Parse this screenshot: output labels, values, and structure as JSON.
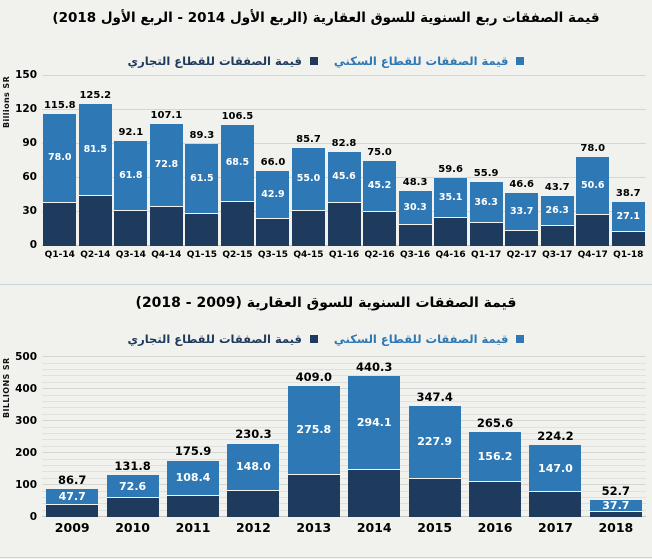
{
  "colors": {
    "residential": "#2e79b5",
    "commercial": "#1e3a5c"
  },
  "chart_data": [
    {
      "type": "bar",
      "stacked": true,
      "title": "قيمة الصفقات ربع السنوية للسوق العقارية (الربع الأول 2014 - الربع الأول 2018)",
      "y_axis_label": "Billions SR",
      "ylim": [
        0,
        150
      ],
      "y_ticks": [
        0,
        30,
        60,
        90,
        120,
        150
      ],
      "grid_step": 30,
      "major_every": 30,
      "legend_position": "top",
      "legend": [
        {
          "label": "قيمة الصفقات للقطاع السكني",
          "series": "residential"
        },
        {
          "label": "قيمة الصفقات للقطاع التجاري",
          "series": "commercial"
        }
      ],
      "categories": [
        "Q1-14",
        "Q2-14",
        "Q3-14",
        "Q4-14",
        "Q1-15",
        "Q2-15",
        "Q3-15",
        "Q4-15",
        "Q1-16",
        "Q2-16",
        "Q3-16",
        "Q4-16",
        "Q1-17",
        "Q2-17",
        "Q3-17",
        "Q4-17",
        "Q1-18"
      ],
      "series": [
        {
          "name": "قيمة الصفقات للقطاع التجاري",
          "color": "#1e3a5c",
          "labeled": false,
          "values": [
            37.8,
            43.7,
            30.3,
            34.3,
            27.8,
            38.0,
            23.1,
            30.7,
            37.2,
            29.8,
            18.0,
            24.5,
            19.6,
            12.9,
            17.4,
            27.4,
            11.6
          ]
        },
        {
          "name": "قيمة الصفقات للقطاع السكني",
          "color": "#2e79b5",
          "labeled": true,
          "values": [
            78.0,
            81.5,
            61.8,
            72.8,
            61.5,
            68.5,
            42.9,
            55.0,
            45.6,
            45.2,
            30.3,
            35.1,
            36.3,
            33.7,
            26.3,
            50.6,
            27.1
          ]
        }
      ],
      "totals": [
        115.8,
        125.2,
        92.1,
        107.1,
        89.3,
        106.5,
        66.0,
        85.7,
        82.8,
        75.0,
        48.3,
        59.6,
        55.9,
        46.6,
        43.7,
        78.0,
        38.7
      ]
    },
    {
      "type": "bar",
      "stacked": true,
      "title": "قيمة الصفقات السنوية للسوق العقارية (2009 - 2018)",
      "y_axis_label": "BILLIONS SR",
      "ylim": [
        0,
        500
      ],
      "y_ticks": [
        0,
        100,
        200,
        300,
        400,
        500
      ],
      "grid_step": 20,
      "major_every": 100,
      "legend_position": "top",
      "legend": [
        {
          "label": "قيمة الصفقات للقطاع السكني",
          "series": "residential"
        },
        {
          "label": "قيمة الصفقات للقطاع التجاري",
          "series": "commercial"
        }
      ],
      "categories": [
        "2009",
        "2010",
        "2011",
        "2012",
        "2013",
        "2014",
        "2015",
        "2016",
        "2017",
        "2018"
      ],
      "series": [
        {
          "name": "قيمة الصفقات للقطاع التجاري",
          "color": "#1e3a5c",
          "labeled": false,
          "values": [
            39.0,
            59.2,
            67.5,
            82.3,
            133.2,
            146.2,
            119.5,
            109.4,
            77.2,
            15.0
          ]
        },
        {
          "name": "قيمة الصفقات للقطاع السكني",
          "color": "#2e79b5",
          "labeled": true,
          "values": [
            47.7,
            72.6,
            108.4,
            148.0,
            275.8,
            294.1,
            227.9,
            156.2,
            147.0,
            37.7
          ]
        }
      ],
      "totals": [
        86.7,
        131.8,
        175.9,
        230.3,
        409.0,
        440.3,
        347.4,
        265.6,
        224.2,
        52.7
      ]
    }
  ]
}
